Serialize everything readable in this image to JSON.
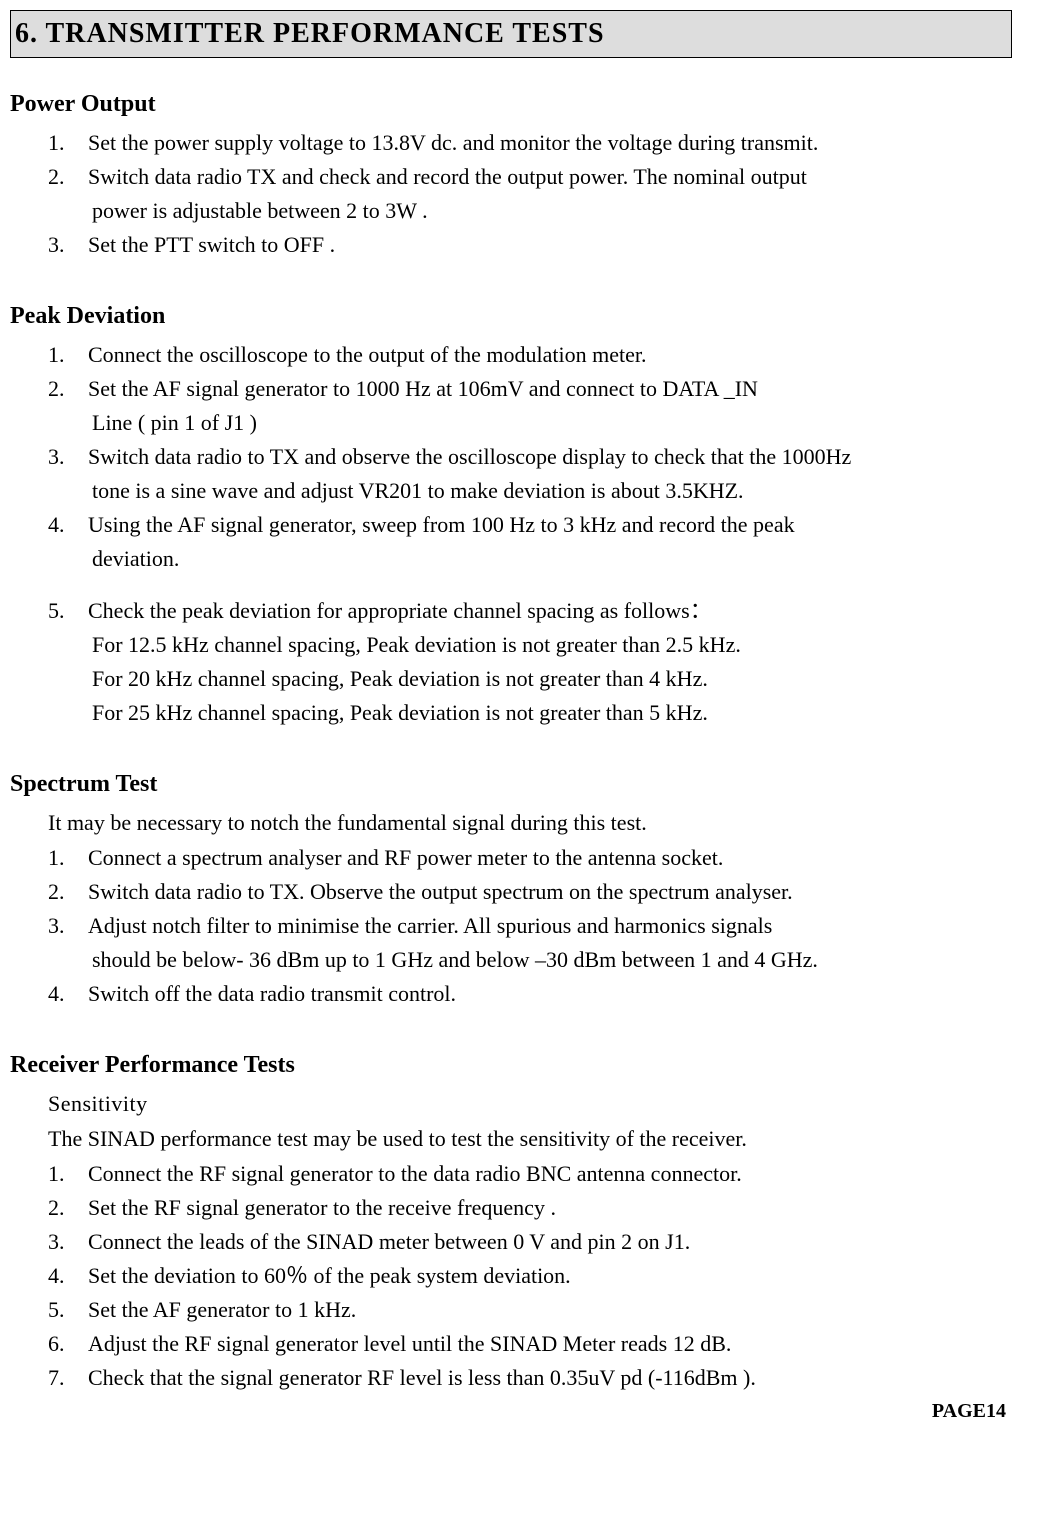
{
  "chapter": "6. TRANSMITTER PERFORMANCE TESTS",
  "powerOutput": {
    "title": "Power Output",
    "i1n": "1.",
    "i1": "Set the power supply voltage to 13.8V dc. and monitor the voltage during transmit.",
    "i2n": "2.",
    "i2": "Switch data radio TX and check and record the output power. The nominal output",
    "i2c": "power is adjustable between 2 to 3W .",
    "i3n": "3.",
    "i3": "Set the PTT switch to OFF ."
  },
  "peakDeviation": {
    "title": "Peak Deviation",
    "i1n": "1.",
    "i1": "Connect the oscilloscope to the output of the modulation meter.",
    "i2n": "2.",
    "i2": "Set the AF signal generator to 1000 Hz at 106mV and connect to DATA _IN",
    "i2c": "Line ( pin 1 of J1 )",
    "i3n": "3.",
    "i3": "Switch data radio to TX and observe the oscilloscope display to check that the 1000Hz",
    "i3c": "tone is a sine wave and adjust VR201 to make deviation is about 3.5KHZ.",
    "i4n": "4.",
    "i4": "Using the AF signal generator, sweep from 100 Hz to 3 kHz and record the peak",
    "i4c": "deviation.",
    "i5n": "5.",
    "i5": "Check the peak deviation for appropriate channel spacing as follows：",
    "i5c1": "For 12.5 kHz channel spacing, Peak deviation is not greater than 2.5 kHz.",
    "i5c2": "For 20 kHz channel spacing, Peak deviation is not greater than 4 kHz.",
    "i5c3": "For 25 kHz channel spacing, Peak deviation is not greater than 5 kHz."
  },
  "spectrumTest": {
    "title": "Spectrum Test",
    "intro": "It may be necessary to notch the fundamental signal during this test.",
    "i1n": "1.",
    "i1": "Connect a spectrum analyser and RF power meter to the antenna socket.",
    "i2n": "2.",
    "i2": "Switch data radio to TX. Observe the output spectrum on the spectrum analyser.",
    "i3n": "3.",
    "i3": "Adjust notch filter to minimise the carrier. All spurious and harmonics signals",
    "i3c": "should be below- 36 dBm up to 1 GHz and below –30 dBm between 1 and 4 GHz.",
    "i4n": "4.",
    "i4": " Switch off the data radio transmit control."
  },
  "receiverTests": {
    "title": "Receiver Performance Tests",
    "subTitle": "Sensitivity",
    "intro": "The SINAD performance test may be used to test the sensitivity of the receiver.",
    "i1n": "1.",
    "i1": "Connect the RF signal generator to the data radio BNC antenna connector.",
    "i2n": "2.",
    "i2": "Set the RF signal generator to the receive frequency .",
    "i3n": "3.",
    "i3": "Connect the leads of the SINAD meter between 0 V and pin 2 on J1.",
    "i4n": "4.",
    "i4": "Set the deviation to 60％ of the peak system deviation.",
    "i5n": "5.",
    "i5": "Set the AF generator to 1 kHz.",
    "i6n": "6.",
    "i6": "Adjust the RF signal generator level until the SINAD Meter reads 12 dB.",
    "i7n": "7.",
    "i7": "Check that the signal generator RF level is less than 0.35uV pd (-116dBm )."
  },
  "pageFooter": "PAGE14"
}
